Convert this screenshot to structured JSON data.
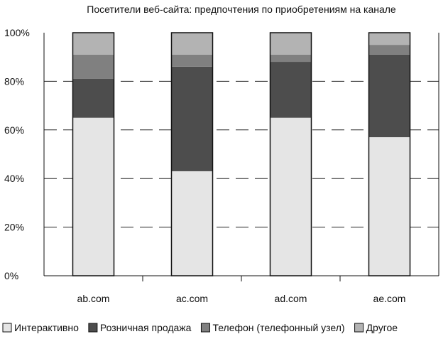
{
  "chart_data": {
    "type": "bar",
    "stacked": true,
    "title": "Посетители веб-сайта: предпочтения по приобретениям на канале",
    "xlabel": "",
    "ylabel": "",
    "categories": [
      "ab.com",
      "ac.com",
      "ad.com",
      "ae.com"
    ],
    "ylim": [
      0,
      100
    ],
    "yticks": [
      0,
      20,
      40,
      60,
      80,
      100
    ],
    "ytick_labels": [
      "0%",
      "20%",
      "40%",
      "60%",
      "80%",
      "100%"
    ],
    "grid": "horizontal-dashed",
    "legend_position": "bottom",
    "series": [
      {
        "name": "Интерактивно",
        "color": "#e5e5e5",
        "values": [
          65,
          43,
          65,
          57
        ]
      },
      {
        "name": "Розничная продажа",
        "color": "#4d4d4d",
        "values": [
          16,
          43,
          23,
          34
        ]
      },
      {
        "name": "Телефон (телефонный узел)",
        "color": "#808080",
        "values": [
          10,
          5,
          3,
          4
        ]
      },
      {
        "name": "Другое",
        "color": "#b3b3b3",
        "values": [
          9,
          9,
          9,
          5
        ]
      }
    ]
  }
}
